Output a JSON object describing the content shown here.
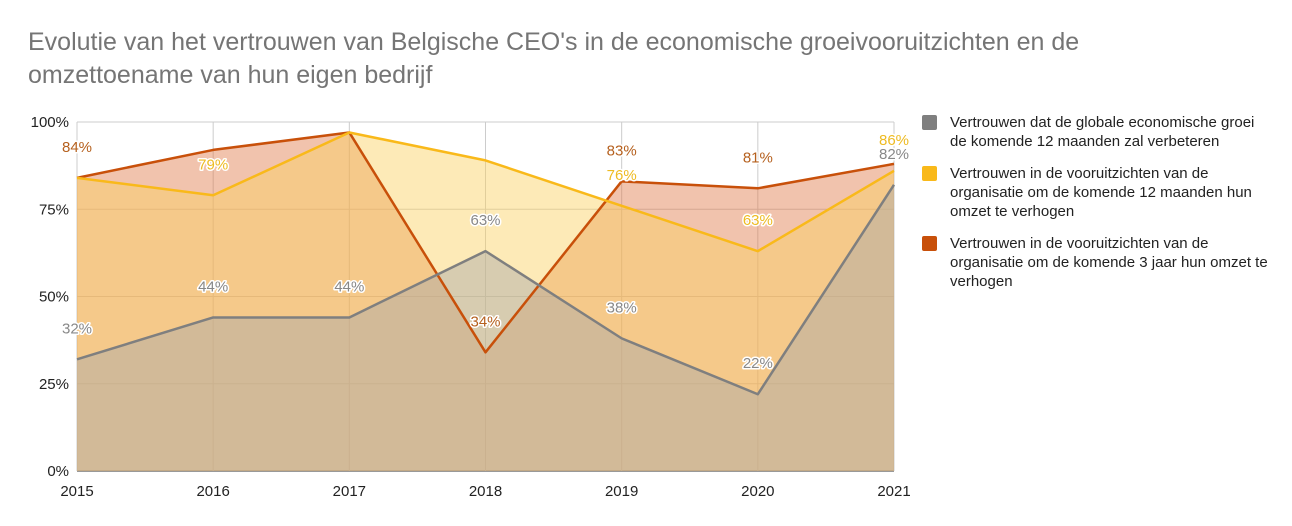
{
  "chart_data": {
    "type": "area",
    "title": "Evolutie van het vertrouwen van Belgische CEO's in de economische groeivooruitzichten en de omzettoename van hun eigen bedrijf",
    "x": [
      "2015",
      "2016",
      "2017",
      "2018",
      "2019",
      "2020",
      "2021"
    ],
    "y_ticks": [
      "0%",
      "25%",
      "50%",
      "75%",
      "100%"
    ],
    "ylim": [
      0,
      100
    ],
    "grid": true,
    "legend_position": "right",
    "series": [
      {
        "name": "Vertrouwen dat de globale economische groei de komende 12 maanden zal verbeteren",
        "values": [
          32,
          44,
          44,
          63,
          38,
          22,
          82
        ],
        "labels": [
          "32%",
          "44%",
          "44%",
          "63%",
          "38%",
          "22%",
          "82%"
        ],
        "line_color": "#7f7f7f",
        "fill_color": "#a8a8a8",
        "label_color": "#888888"
      },
      {
        "name": "Vertrouwen in de vooruitzichten van de organisatie om de komende 12 maanden hun omzet te verhogen",
        "values": [
          84,
          79,
          97,
          89,
          76,
          63,
          86
        ],
        "labels": [
          "",
          "79%",
          "",
          "",
          "76%",
          "63%",
          "86%"
        ],
        "line_color": "#f9b91a",
        "fill_color": "#fbd060",
        "label_color": "#eebb22"
      },
      {
        "name": "Vertrouwen in de vooruitzichten van de organisatie om de komende 3 jaar hun omzet te verhogen",
        "values": [
          84,
          92,
          97,
          34,
          83,
          81,
          88
        ],
        "labels": [
          "84%",
          "",
          "",
          "34%",
          "83%",
          "81%",
          ""
        ],
        "line_color": "#c8500a",
        "fill_color": "#e07a4a",
        "label_color": "#b5601e"
      }
    ]
  }
}
